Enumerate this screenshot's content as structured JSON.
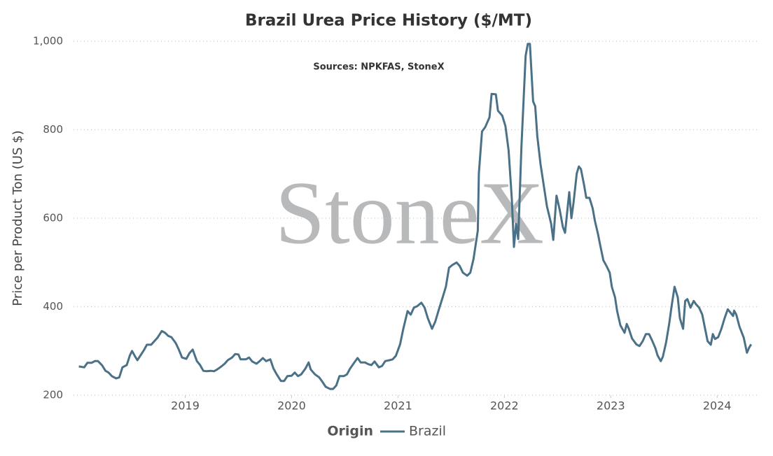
{
  "chart_data": {
    "type": "line",
    "title": "Brazil Urea Price History ($/MT)",
    "subtitle": "Sources: NPKFAS, StoneX",
    "watermark": "StoneX",
    "y_label": "Price per Product Ton (US $)",
    "legend_title": "Origin",
    "grid": true,
    "xlim": [
      2017.95,
      2024.4
    ],
    "xticks": [
      2019,
      2020,
      2021,
      2022,
      2023,
      2024
    ],
    "ylim": [
      200,
      1000
    ],
    "yticks": [
      200,
      400,
      600,
      800,
      {
        "value": 1000,
        "label": "1,000"
      }
    ],
    "x": [
      2018.0,
      2018.05,
      2018.08,
      2018.12,
      2018.15,
      2018.18,
      2018.22,
      2018.25,
      2018.28,
      2018.31,
      2018.35,
      2018.38,
      2018.41,
      2018.45,
      2018.48,
      2018.5,
      2018.53,
      2018.55,
      2018.58,
      2018.61,
      2018.64,
      2018.68,
      2018.71,
      2018.74,
      2018.78,
      2018.81,
      2018.84,
      2018.87,
      2018.91,
      2018.94,
      2018.97,
      2019.01,
      2019.04,
      2019.07,
      2019.11,
      2019.14,
      2019.17,
      2019.2,
      2019.24,
      2019.27,
      2019.3,
      2019.34,
      2019.37,
      2019.4,
      2019.44,
      2019.47,
      2019.5,
      2019.52,
      2019.57,
      2019.6,
      2019.63,
      2019.67,
      2019.7,
      2019.73,
      2019.76,
      2019.8,
      2019.83,
      2019.86,
      2019.9,
      2019.93,
      2019.96,
      2020.0,
      2020.03,
      2020.06,
      2020.09,
      2020.13,
      2020.16,
      2020.18,
      2020.22,
      2020.26,
      2020.29,
      2020.32,
      2020.36,
      2020.39,
      2020.42,
      2020.45,
      2020.49,
      2020.52,
      2020.55,
      2020.59,
      2020.62,
      2020.65,
      2020.69,
      2020.72,
      2020.75,
      2020.78,
      2020.82,
      2020.85,
      2020.88,
      2020.92,
      2020.95,
      2020.98,
      2021.02,
      2021.05,
      2021.09,
      2021.12,
      2021.15,
      2021.18,
      2021.22,
      2021.25,
      2021.28,
      2021.32,
      2021.35,
      2021.38,
      2021.42,
      2021.45,
      2021.48,
      2021.51,
      2021.55,
      2021.58,
      2021.61,
      2021.65,
      2021.68,
      2021.71,
      2021.75,
      2021.76,
      2021.79,
      2021.82,
      2021.86,
      2021.88,
      2021.92,
      2021.94,
      2021.98,
      2022.01,
      2022.04,
      2022.07,
      2022.09,
      2022.11,
      2022.13,
      2022.16,
      2022.2,
      2022.22,
      2022.24,
      2022.27,
      2022.29,
      2022.31,
      2022.34,
      2022.37,
      2022.4,
      2022.44,
      2022.46,
      2022.49,
      2022.52,
      2022.55,
      2022.57,
      2022.61,
      2022.63,
      2022.65,
      2022.68,
      2022.7,
      2022.72,
      2022.75,
      2022.77,
      2022.8,
      2022.83,
      2022.85,
      2022.88,
      2022.9,
      2022.93,
      2022.96,
      2022.99,
      2023.01,
      2023.04,
      2023.06,
      2023.09,
      2023.13,
      2023.15,
      2023.17,
      2023.2,
      2023.24,
      2023.27,
      2023.3,
      2023.33,
      2023.36,
      2023.39,
      2023.42,
      2023.44,
      2023.47,
      2023.49,
      2023.52,
      2023.55,
      2023.57,
      2023.6,
      2023.63,
      2023.65,
      2023.68,
      2023.7,
      2023.72,
      2023.75,
      2023.78,
      2023.8,
      2023.83,
      2023.86,
      2023.88,
      2023.91,
      2023.94,
      2023.96,
      2023.98,
      2024.01,
      2024.04,
      2024.07,
      2024.1,
      2024.12,
      2024.15,
      2024.16,
      2024.18,
      2024.21,
      2024.25,
      2024.28,
      2024.3,
      2024.32
    ],
    "series": [
      {
        "name": "Brazil",
        "color": "#4a7187",
        "values": [
          265,
          263,
          273,
          273,
          277,
          277,
          267,
          255,
          251,
          243,
          238,
          240,
          263,
          268,
          290,
          300,
          287,
          279,
          290,
          301,
          314,
          314,
          322,
          330,
          345,
          341,
          334,
          331,
          318,
          303,
          285,
          282,
          295,
          303,
          277,
          268,
          255,
          254,
          255,
          254,
          258,
          265,
          271,
          279,
          285,
          293,
          292,
          281,
          281,
          285,
          276,
          271,
          277,
          284,
          277,
          281,
          260,
          247,
          232,
          232,
          243,
          244,
          251,
          243,
          247,
          260,
          274,
          258,
          247,
          240,
          230,
          219,
          214,
          214,
          222,
          243,
          243,
          247,
          260,
          274,
          284,
          274,
          274,
          270,
          268,
          276,
          263,
          266,
          277,
          279,
          281,
          289,
          315,
          350,
          390,
          382,
          398,
          401,
          409,
          398,
          374,
          350,
          366,
          390,
          421,
          445,
          488,
          494,
          500,
          492,
          477,
          470,
          477,
          508,
          572,
          701,
          796,
          806,
          828,
          881,
          880,
          843,
          832,
          808,
          753,
          643,
          535,
          587,
          553,
          761,
          967,
          994,
          994,
          864,
          853,
          785,
          722,
          674,
          627,
          587,
          551,
          651,
          619,
          580,
          567,
          659,
          600,
          635,
          701,
          717,
          711,
          674,
          646,
          646,
          622,
          595,
          564,
          540,
          505,
          492,
          477,
          445,
          421,
          390,
          358,
          341,
          361,
          350,
          328,
          315,
          311,
          322,
          338,
          338,
          323,
          306,
          290,
          277,
          287,
          319,
          363,
          398,
          445,
          421,
          374,
          350,
          413,
          417,
          398,
          413,
          406,
          398,
          382,
          358,
          322,
          314,
          338,
          327,
          331,
          350,
          374,
          394,
          388,
          379,
          391,
          382,
          355,
          330,
          296,
          307,
          315
        ]
      }
    ]
  }
}
